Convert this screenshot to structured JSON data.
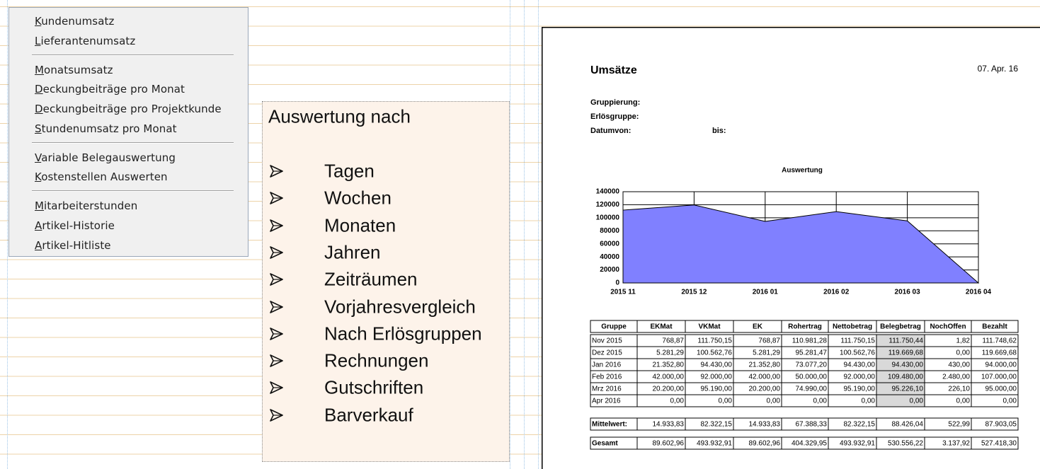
{
  "menu": {
    "groups": [
      [
        "Kundenumsatz",
        "Lieferantenumsatz"
      ],
      [
        "Monatsumsatz",
        "Deckungbeiträge pro Monat",
        "Deckungbeiträge pro Projektkunde",
        "Stundenumsatz pro Monat"
      ],
      [
        "Variable Belegauswertung",
        "Kostenstellen Auswerten"
      ],
      [
        "Mitarbeiterstunden",
        "Artikel-Historie",
        "Artikel-Hitliste"
      ]
    ]
  },
  "panel": {
    "title": "Auswertung nach",
    "items": [
      "Tagen",
      "Wochen",
      "Monaten",
      "Jahren",
      "Zeiträumen",
      "Vorjahresvergleich",
      "Nach Erlösgruppen",
      "Rechnungen",
      "Gutschriften",
      "Barverkauf"
    ]
  },
  "report": {
    "title": "Umsätze",
    "date": "07. Apr. 16",
    "fields": [
      "Gruppierung:",
      "Erlösgruppe:",
      "Datumvon:"
    ],
    "to_label": "bis:",
    "chart": {
      "type": "area",
      "title": "Auswertung",
      "categories": [
        "2015 11",
        "2015 12",
        "2016 01",
        "2016 02",
        "2016 03",
        "2016 04"
      ],
      "values": [
        111750,
        119670,
        94430,
        109480,
        95226,
        0
      ],
      "color": "#8080ff",
      "ylim": [
        0,
        140000
      ],
      "yticks": [
        0,
        20000,
        40000,
        60000,
        80000,
        100000,
        120000,
        140000
      ],
      "grid": true
    },
    "table": {
      "header": [
        "Gruppe",
        "EKMat",
        "VKMat",
        "EK",
        "Rohertrag",
        "Nettobetrag",
        "Belegbetrag",
        "NochOffen",
        "Bezahlt"
      ],
      "rows": [
        [
          "Nov 2015",
          "768,87",
          "111.750,15",
          "768,87",
          "110.981,28",
          "111.750,15",
          "111.750,44",
          "1,82",
          "111.748,62"
        ],
        [
          "Dez 2015",
          "5.281,29",
          "100.562,76",
          "5.281,29",
          "95.281,47",
          "100.562,76",
          "119.669,68",
          "0,00",
          "119.669,68"
        ],
        [
          "Jan 2016",
          "21.352,80",
          "94.430,00",
          "21.352,80",
          "73.077,20",
          "94.430,00",
          "94.430,00",
          "430,00",
          "94.000,00"
        ],
        [
          "Feb 2016",
          "42.000,00",
          "92.000,00",
          "42.000,00",
          "50.000,00",
          "92.000,00",
          "109.480,00",
          "2.480,00",
          "107.000,00"
        ],
        [
          "Mrz 2016",
          "20.200,00",
          "95.190,00",
          "20.200,00",
          "74.990,00",
          "95.190,00",
          "95.226,10",
          "226,10",
          "95.000,00"
        ],
        [
          "Apr 2016",
          "0,00",
          "0,00",
          "0,00",
          "0,00",
          "0,00",
          "0,00",
          "0,00",
          "0,00"
        ]
      ],
      "summary": [
        [
          "Mittelwert:",
          "14.933,83",
          "82.322,15",
          "14.933,83",
          "67.388,33",
          "82.322,15",
          "88.426,04",
          "522,99",
          "87.903,05"
        ],
        [
          "Gesamt",
          "89.602,96",
          "493.932,91",
          "89.602,96",
          "404.329,95",
          "493.932,91",
          "530.556,22",
          "3.137,92",
          "527.418,30"
        ]
      ]
    }
  }
}
